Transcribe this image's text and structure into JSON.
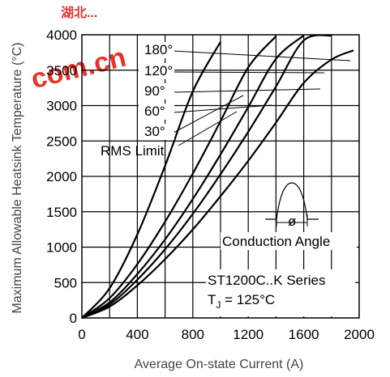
{
  "chart_data": {
    "type": "line",
    "xlabel": "Average On-state Current (A)",
    "ylabel": "Maximum Allowable Heatsink Temperature (°C)",
    "xlim": [
      0,
      2000
    ],
    "ylim": [
      0,
      4000
    ],
    "xticks": [
      "0",
      "400",
      "800",
      "1200",
      "1600",
      "2000"
    ],
    "yticks": [
      "0",
      "500",
      "1000",
      "1500",
      "2000",
      "2500",
      "3000",
      "3500",
      "4000"
    ],
    "grid": true,
    "series": [
      {
        "name": "30°",
        "x": [
          0,
          200,
          400,
          600,
          800,
          1000
        ],
        "y": [
          0,
          420,
          1180,
          2150,
          3200,
          3900
        ]
      },
      {
        "name": "60°",
        "x": [
          0,
          200,
          400,
          600,
          800,
          1000,
          1200,
          1400
        ],
        "y": [
          0,
          280,
          760,
          1360,
          2040,
          2780,
          3540,
          3980
        ]
      },
      {
        "name": "90°",
        "x": [
          0,
          200,
          400,
          600,
          800,
          1000,
          1200,
          1400,
          1600
        ],
        "y": [
          0,
          220,
          620,
          1110,
          1680,
          2310,
          2980,
          3660,
          3990
        ]
      },
      {
        "name": "120°",
        "x": [
          0,
          200,
          400,
          600,
          800,
          1000,
          1200,
          1400,
          1600,
          1800
        ],
        "y": [
          0,
          190,
          540,
          970,
          1470,
          2030,
          2630,
          3270,
          3920,
          3990
        ]
      },
      {
        "name": "180°",
        "x": [
          0,
          200,
          400,
          600,
          800,
          1000,
          1200,
          1400,
          1600,
          1800,
          1960
        ],
        "y": [
          0,
          160,
          460,
          830,
          1250,
          1720,
          2220,
          2760,
          3320,
          3650,
          3780
        ]
      }
    ],
    "legend_labels": [
      "180°",
      "120°",
      "90°",
      "60°",
      "30°"
    ],
    "rms_label": "RMS Limit",
    "conduction_label": "Conduction Angle",
    "conduction_symbol": "ø",
    "series_label": "ST1200C..K Series",
    "tj_label_prefix": "T",
    "tj_label_sub": "J",
    "tj_label_suffix": " = 125°C"
  },
  "watermark": {
    "top": "湖北...",
    "main": "com.cn"
  }
}
